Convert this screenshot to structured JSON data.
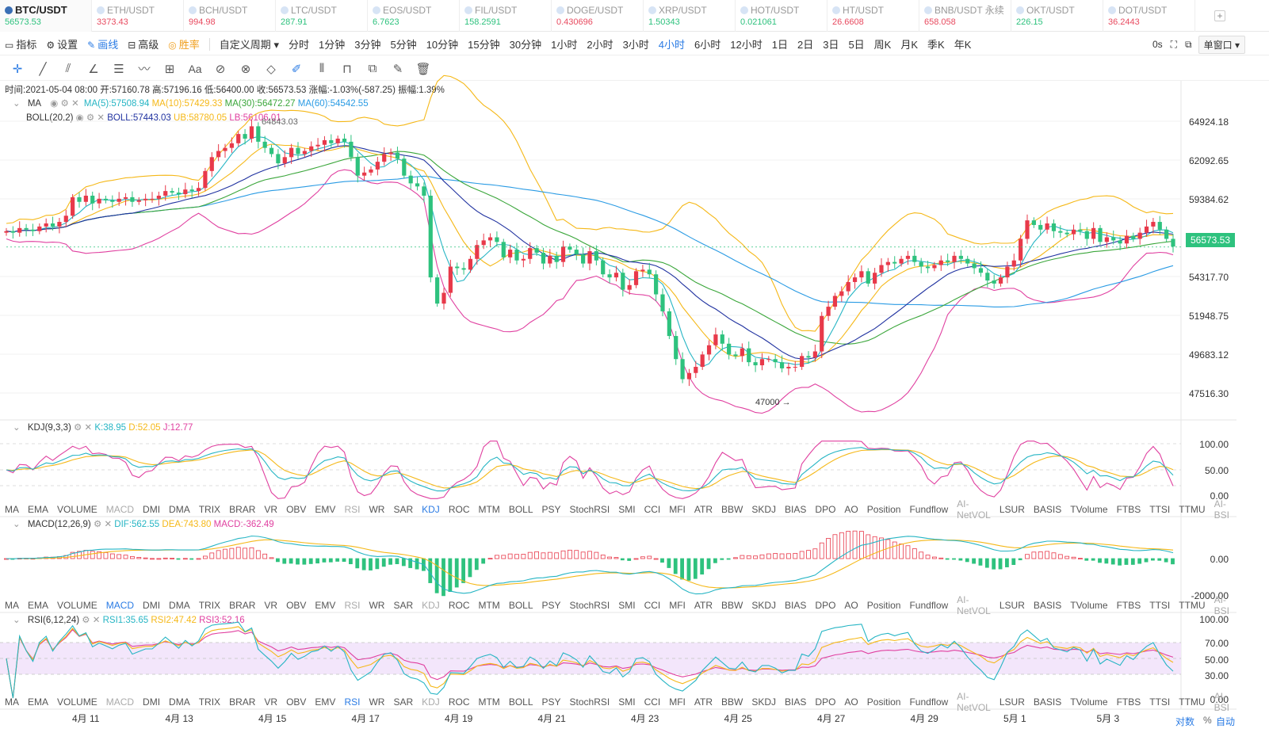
{
  "tickers": [
    {
      "name": "BTC/USDT",
      "price": "56573.53",
      "color": "#2ec27e"
    },
    {
      "name": "ETH/USDT",
      "price": "3373.43",
      "color": "#e84a5f"
    },
    {
      "name": "BCH/USDT",
      "price": "994.98",
      "color": "#e84a5f"
    },
    {
      "name": "LTC/USDT",
      "price": "287.91",
      "color": "#2ec27e"
    },
    {
      "name": "EOS/USDT",
      "price": "6.7623",
      "color": "#2ec27e"
    },
    {
      "name": "FIL/USDT",
      "price": "158.2591",
      "color": "#2ec27e"
    },
    {
      "name": "DOGE/USDT",
      "price": "0.430696",
      "color": "#e84a5f"
    },
    {
      "name": "XRP/USDT",
      "price": "1.50343",
      "color": "#2ec27e"
    },
    {
      "name": "HOT/USDT",
      "price": "0.021061",
      "color": "#2ec27e"
    },
    {
      "name": "HT/USDT",
      "price": "26.6608",
      "color": "#e84a5f"
    },
    {
      "name": "BNB/USDT 永续",
      "price": "658.058",
      "color": "#e84a5f"
    },
    {
      "name": "OKT/USDT",
      "price": "226.15",
      "color": "#2ec27e"
    },
    {
      "name": "DOT/USDT",
      "price": "36.2443",
      "color": "#e84a5f"
    }
  ],
  "toolbar": {
    "left": [
      "指标",
      "设置",
      "画线",
      "高级",
      "胜率"
    ],
    "custom": "自定义周期",
    "periods": [
      "分时",
      "1分钟",
      "3分钟",
      "5分钟",
      "10分钟",
      "15分钟",
      "30分钟",
      "1小时",
      "2小时",
      "3小时",
      "4小时",
      "6小时",
      "12小时",
      "1日",
      "2日",
      "3日",
      "5日",
      "周K",
      "月K",
      "季K",
      "年K"
    ],
    "active_period": "4小时",
    "timer": "0s",
    "window": "单窗口"
  },
  "info": {
    "label": "时间:2021-05-04 08:00 开:57160.78 高:57196.16 低:56400.00 收:56573.53 涨幅:-1.03%(-587.25) 振幅:1.39%"
  },
  "ma_legend": {
    "name": "MA",
    "ma5": "MA(5):57508.94",
    "ma10": "MA(10):57429.33",
    "ma30": "MA(30):56472.27",
    "ma60": "MA(60):54542.55"
  },
  "boll_legend": {
    "name": "BOLL(20,2)",
    "boll": "BOLL:57443.03",
    "ub": "UB:58780.05",
    "lb": "LB:56106.01"
  },
  "kdj_legend": {
    "name": "KDJ(9,3,3)",
    "k": "K:38.95",
    "d": "D:52.05",
    "j": "J:12.77"
  },
  "macd_legend": {
    "name": "MACD(12,26,9)",
    "dif": "DIF:562.55",
    "dea": "DEA:743.80",
    "macd": "MACD:-362.49"
  },
  "rsi_legend": {
    "name": "RSI(6,12,24)",
    "r1": "RSI1:35.65",
    "r2": "RSI2:47.42",
    "r3": "RSI3:52.16"
  },
  "indicators": [
    "MA",
    "EMA",
    "VOLUME",
    "MACD",
    "DMI",
    "DMA",
    "TRIX",
    "BRAR",
    "VR",
    "OBV",
    "EMV",
    "RSI",
    "WR",
    "SAR",
    "KDJ",
    "ROC",
    "MTM",
    "BOLL",
    "PSY",
    "StochRSI",
    "SMI",
    "CCI",
    "MFI",
    "ATR",
    "BBW",
    "SKDJ",
    "BIAS",
    "DPO",
    "AO",
    "Position",
    "Fundflow",
    "AI-NetVOL",
    "LSUR",
    "BASIS",
    "TVolume",
    "FTBS",
    "TTSI",
    "TTMU",
    "AI-BSI"
  ],
  "price_axis": [
    "64924.18",
    "62092.65",
    "59384.62",
    "54317.70",
    "51948.75",
    "49683.12",
    "47516.30"
  ],
  "last_price": "56573.53",
  "kdj_axis": [
    "100.00",
    "50.00",
    "0.00"
  ],
  "macd_axis": [
    "0.00",
    "-2000.00"
  ],
  "rsi_axis": [
    "100.00",
    "70.00",
    "50.00",
    "30.00",
    "0.00"
  ],
  "dates": [
    "4月 11",
    "4月 13",
    "4月 15",
    "4月 17",
    "4月 19",
    "4月 21",
    "4月 23",
    "4月 25",
    "4月 27",
    "4月 29",
    "5月 1",
    "5月 3"
  ],
  "bottom": {
    "log": "对数",
    "pct": "%",
    "auto": "自动"
  },
  "annot": {
    "high": "64843.03",
    "low": "47000 →"
  },
  "chart_data": {
    "type": "candlestick",
    "interval": "4小时",
    "close": [
      57600,
      57500,
      57800,
      57700,
      57600,
      57900,
      58100,
      57900,
      58200,
      58600,
      59800,
      59500,
      59900,
      59400,
      59700,
      59600,
      59500,
      59700,
      59800,
      59500,
      59600,
      59700,
      59700,
      59900,
      60200,
      60100,
      60000,
      60300,
      60200,
      60400,
      61500,
      62400,
      62800,
      63000,
      63300,
      63900,
      63600,
      64400,
      63400,
      63000,
      62600,
      62000,
      62400,
      63000,
      62600,
      62800,
      63100,
      63200,
      63500,
      63300,
      63600,
      63400,
      62400,
      61200,
      61400,
      61600,
      62100,
      62600,
      62700,
      62300,
      61200,
      60700,
      60500,
      59900,
      54600,
      52900,
      53600,
      55300,
      55200,
      55100,
      55800,
      56700,
      57000,
      57200,
      56900,
      55900,
      56400,
      55700,
      55800,
      56500,
      56200,
      55500,
      56000,
      55600,
      56600,
      56400,
      56100,
      55500,
      56300,
      55700,
      54800,
      54600,
      54900,
      53800,
      54100,
      55000,
      55100,
      54800,
      53500,
      52400,
      50800,
      49300,
      48000,
      48400,
      48800,
      49600,
      50200,
      50900,
      50300,
      49600,
      49500,
      50000,
      49100,
      48900,
      49300,
      49300,
      49100,
      48700,
      48800,
      48800,
      49500,
      49400,
      49800,
      52100,
      52700,
      53400,
      53700,
      54300,
      54600,
      55000,
      54200,
      54900,
      55400,
      55600,
      55500,
      55800,
      56000,
      55600,
      55300,
      55200,
      55400,
      55700,
      55600,
      56000,
      55800,
      55500,
      55200,
      54900,
      54400,
      54200,
      54600,
      55300,
      55700,
      57100,
      58300,
      58000,
      57700,
      58100,
      57600,
      57500,
      57400,
      57700,
      57600,
      57100,
      57800,
      56900,
      57200,
      57000,
      56800,
      57300,
      57100,
      57500,
      57900,
      58200,
      57700,
      57100,
      56600
    ],
    "rsi_band": [
      30,
      70
    ]
  }
}
